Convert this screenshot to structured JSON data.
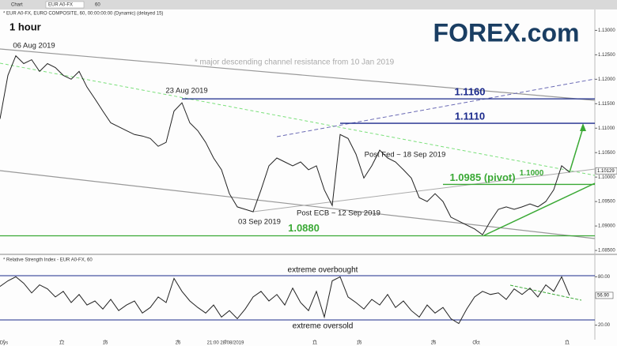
{
  "toolbar": {
    "chart": "Chart",
    "symbol": "EUR A0-FX",
    "interval": "60"
  },
  "header": "* EUR A0-FX, EURO COMPOSITE, 60, 00:00:00:00 (Dynamic) (delayed 15)",
  "logo": "FOREX.com",
  "chart_data": [
    {
      "type": "line",
      "title": "1 hour",
      "color": "#222222",
      "note": "* major descending channel resistance from 10 Jan 2019",
      "x": [
        0,
        1,
        2,
        3,
        4,
        5,
        6,
        7,
        8,
        9,
        10,
        11,
        12,
        13,
        14,
        15,
        16,
        17,
        18,
        19,
        20,
        21,
        22,
        23,
        24,
        25,
        26,
        27,
        28,
        29,
        30,
        31,
        32,
        33,
        34,
        35,
        36,
        37,
        38,
        39,
        40,
        41,
        42,
        43,
        44,
        45,
        46,
        47,
        48,
        49,
        50,
        51,
        52,
        53,
        54,
        55,
        56,
        57,
        58,
        59,
        60,
        61,
        62,
        63,
        64,
        65,
        66,
        67,
        68,
        69,
        70,
        71,
        72
      ],
      "values": [
        1.1119,
        1.1208,
        1.1248,
        1.1232,
        1.124,
        1.1216,
        1.1232,
        1.1224,
        1.1208,
        1.12,
        1.1216,
        1.1184,
        1.116,
        1.1135,
        1.1111,
        1.1103,
        1.1095,
        1.1087,
        1.1084,
        1.1079,
        1.1063,
        1.1071,
        1.1135,
        1.1152,
        1.1111,
        1.1095,
        1.1071,
        1.1039,
        1.1015,
        1.0966,
        1.0939,
        1.0934,
        1.0929,
        1.0974,
        1.1023,
        1.1039,
        1.1031,
        1.1023,
        1.1031,
        1.1015,
        1.1023,
        1.0974,
        1.0942,
        1.1087,
        1.1079,
        1.1047,
        1.0998,
        1.1023,
        1.1055,
        1.1039,
        1.1031,
        1.1015,
        1.0998,
        1.0958,
        1.095,
        1.0966,
        1.095,
        1.0918,
        1.091,
        1.0902,
        1.0894,
        1.0882,
        1.091,
        1.0934,
        1.0939,
        1.0934,
        1.0939,
        1.0945,
        1.0939,
        1.095,
        1.0974,
        1.1023,
        1.101
      ],
      "xlim": [
        0,
        75.2
      ],
      "ylim": [
        1.0842,
        1.1333
      ],
      "yticks": [
        {
          "value": 1.13,
          "label": "1.13000"
        },
        {
          "value": 1.125,
          "label": "1.12500"
        },
        {
          "value": 1.12,
          "label": "1.12000"
        },
        {
          "value": 1.115,
          "label": "1.11500"
        },
        {
          "value": 1.11,
          "label": "1.11000"
        },
        {
          "value": 1.105,
          "label": "1.10500"
        },
        {
          "value": 1.1,
          "label": "1.10000"
        },
        {
          "value": 1.095,
          "label": "1.09500"
        },
        {
          "value": 1.09,
          "label": "1.09000"
        },
        {
          "value": 1.085,
          "label": "1.08500"
        }
      ],
      "last_price": 1.10129,
      "levels": [
        {
          "value": 1.116,
          "label": "1.1160",
          "color": "#1b2a8c"
        },
        {
          "value": 1.111,
          "label": "1.1110",
          "color": "#1b2a8c"
        },
        {
          "value": 1.0985,
          "label": "1.0985 (pivot)",
          "color": "#3aa935"
        },
        {
          "value": 1.088,
          "label": "1.0880",
          "color": "#3aa935"
        },
        {
          "value": 1.1,
          "label": "1.1000",
          "color": "#3aa935"
        }
      ],
      "annotations": [
        "06 Aug 2019",
        "23 Aug 2019",
        "03 Sep 2019",
        "Post ECB ~ 12 Sep 2019",
        "Post Fed ~ 18 Sep 2019"
      ]
    },
    {
      "type": "line",
      "title": "* Relative Strength Index - EUR A0-FX, 60",
      "color": "#222222",
      "x": [
        0,
        1,
        2,
        3,
        4,
        5,
        6,
        7,
        8,
        9,
        10,
        11,
        12,
        13,
        14,
        15,
        16,
        17,
        18,
        19,
        20,
        21,
        22,
        23,
        24,
        25,
        26,
        27,
        28,
        29,
        30,
        31,
        32,
        33,
        34,
        35,
        36,
        37,
        38,
        39,
        40,
        41,
        42,
        43,
        44,
        45,
        46,
        47,
        48,
        49,
        50,
        51,
        52,
        53,
        54,
        55,
        56,
        57,
        58,
        59,
        60,
        61,
        62,
        63,
        64,
        65,
        66,
        67,
        68,
        69,
        70,
        71,
        72
      ],
      "values": [
        68,
        75,
        80,
        72,
        60,
        70,
        65,
        55,
        62,
        48,
        58,
        45,
        50,
        40,
        52,
        38,
        45,
        50,
        35,
        42,
        55,
        48,
        78,
        62,
        50,
        42,
        35,
        45,
        30,
        38,
        28,
        40,
        55,
        62,
        50,
        58,
        45,
        66,
        48,
        38,
        62,
        30,
        75,
        80,
        55,
        48,
        40,
        52,
        45,
        58,
        42,
        50,
        38,
        30,
        45,
        35,
        42,
        28,
        22,
        40,
        55,
        62,
        58,
        60,
        52,
        65,
        58,
        66,
        55,
        70,
        62,
        80,
        57
      ],
      "xlim": [
        0,
        75.2
      ],
      "ylim": [
        0,
        100
      ],
      "yticks": [
        {
          "value": 80,
          "label": "80.00"
        },
        {
          "value": 20,
          "label": "20.00"
        }
      ],
      "last_value": {
        "value": 56.9,
        "label": "56.90"
      },
      "zones": [
        "extreme overbought",
        "extreme oversold"
      ],
      "xticks": [
        {
          "value": 0.5,
          "label": "Dys"
        },
        {
          "value": 7.8,
          "label": "12"
        },
        {
          "value": 13.3,
          "label": "16"
        },
        {
          "value": 22.5,
          "label": "26"
        },
        {
          "value": 28.5,
          "label": "21:00 28/08/2019"
        },
        {
          "value": 39.8,
          "label": "11"
        },
        {
          "value": 45.4,
          "label": "16"
        },
        {
          "value": 54.8,
          "label": "26"
        },
        {
          "value": 60.2,
          "label": "Oct"
        },
        {
          "value": 71.7,
          "label": "11"
        }
      ]
    }
  ]
}
